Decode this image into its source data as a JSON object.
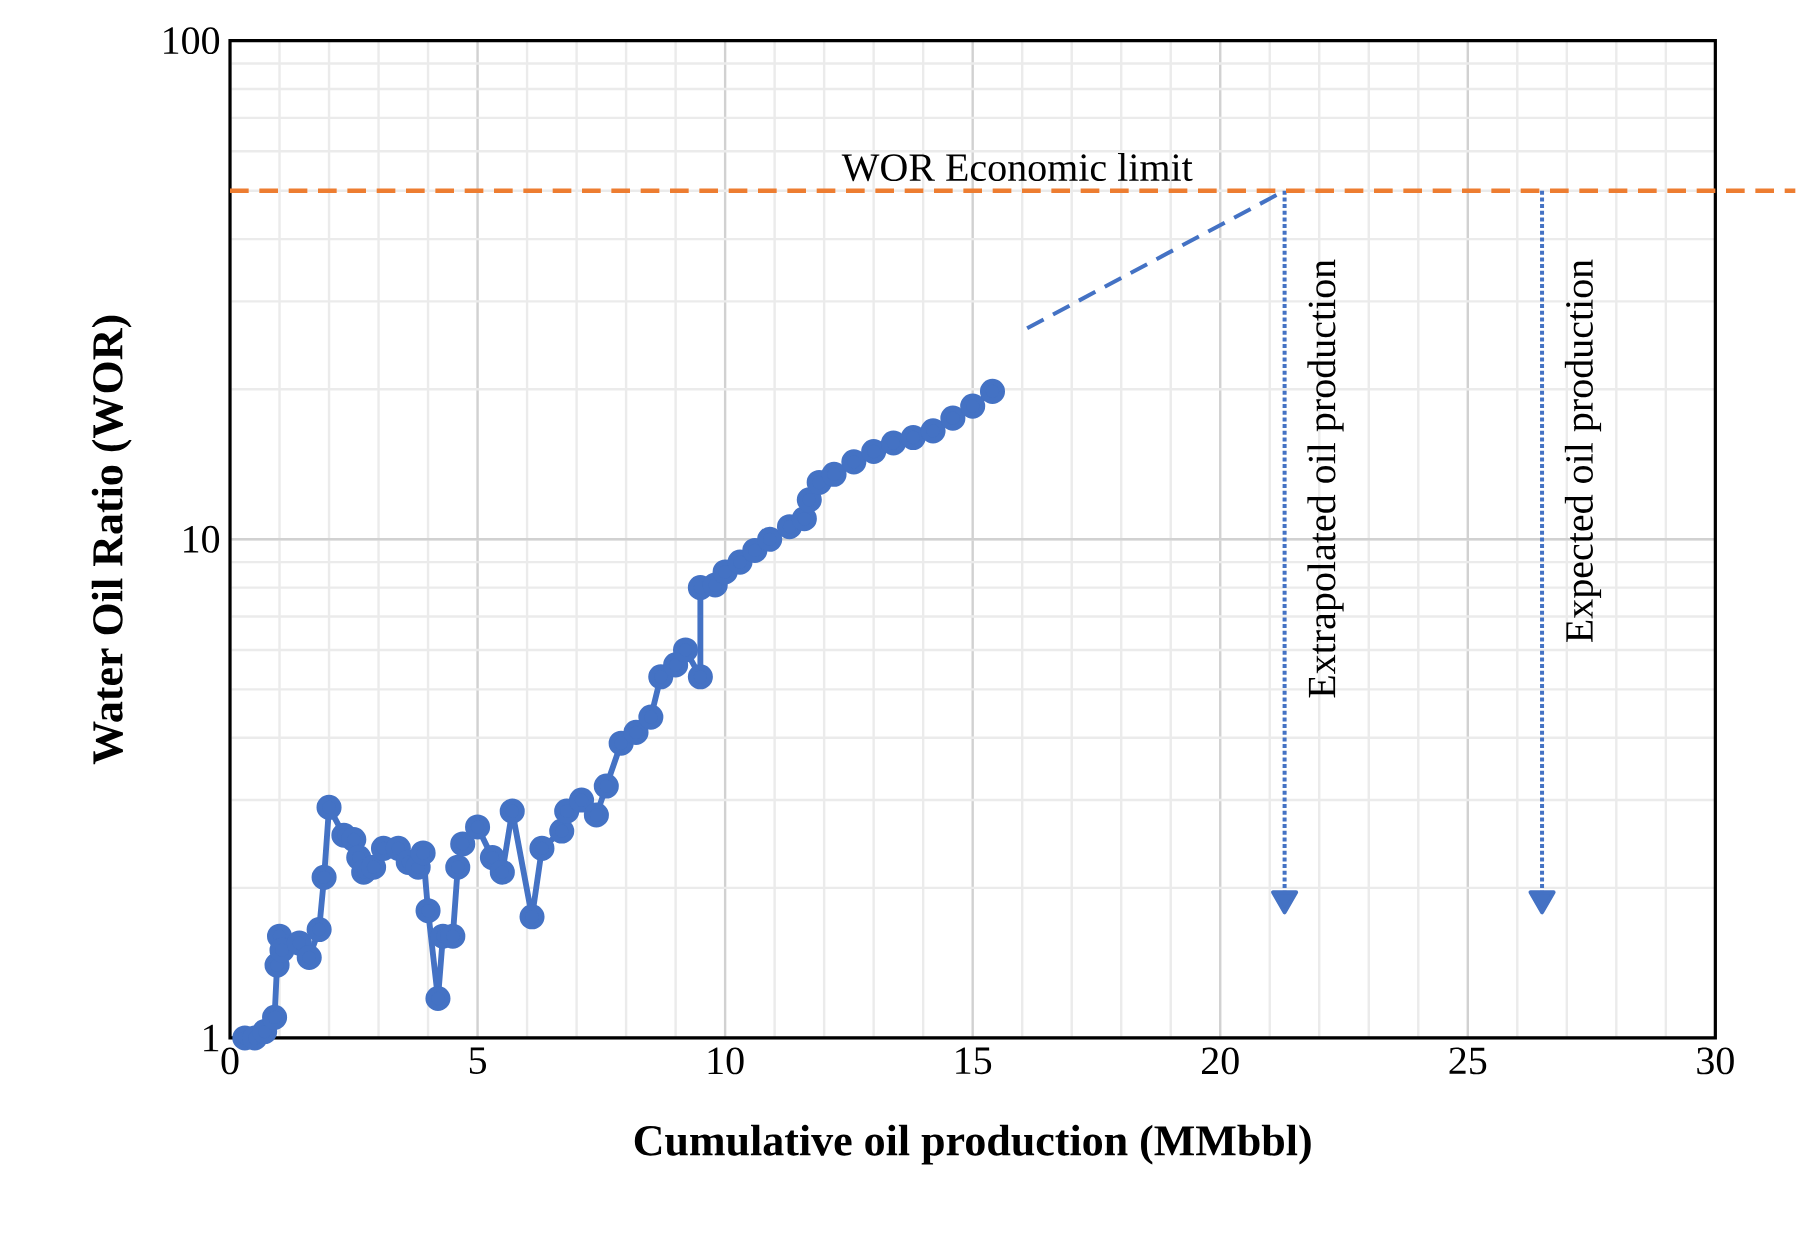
{
  "chart_data": {
    "type": "line",
    "xlabel": "Cumulative oil production (MMbbl)",
    "ylabel": "Water Oil Ratio (WOR)",
    "log": "y",
    "grid": true,
    "xlim": [
      0,
      30
    ],
    "xticks": [
      0,
      5,
      10,
      15,
      20,
      25,
      30
    ],
    "ylim": [
      1,
      100
    ],
    "yticks": [
      1,
      10,
      100
    ],
    "series": [
      {
        "color": "#4472c4",
        "marker": "circle",
        "line_style": "solid",
        "x": [
          0.3,
          0.5,
          0.7,
          0.9,
          0.95,
          1.0,
          1.05,
          1.4,
          1.6,
          1.8,
          1.9,
          2.0,
          2.3,
          2.5,
          2.6,
          2.7,
          2.9,
          3.1,
          3.4,
          3.6,
          3.8,
          3.9,
          4.0,
          4.2,
          4.3,
          4.5,
          4.6,
          4.7,
          5.0,
          5.3,
          5.5,
          5.7,
          6.1,
          6.3,
          6.7,
          6.8,
          7.1,
          7.4,
          7.6,
          7.9,
          8.2,
          8.5,
          8.7,
          9.0,
          9.2,
          9.5,
          9.5,
          9.8,
          10.0,
          10.3,
          10.6,
          10.9,
          11.3,
          11.6,
          11.7,
          11.9,
          12.2,
          12.6,
          13.0,
          13.4,
          13.8,
          14.2,
          14.6,
          15.0,
          15.4
        ],
        "values": [
          1.0,
          1.0,
          1.03,
          1.1,
          1.4,
          1.6,
          1.5,
          1.55,
          1.45,
          1.65,
          2.1,
          2.9,
          2.55,
          2.5,
          2.3,
          2.15,
          2.2,
          2.4,
          2.4,
          2.25,
          2.2,
          2.35,
          1.8,
          1.2,
          1.6,
          1.6,
          2.2,
          2.45,
          2.65,
          2.3,
          2.15,
          2.85,
          1.75,
          2.4,
          2.6,
          2.85,
          3.0,
          2.8,
          3.2,
          3.9,
          4.1,
          4.4,
          5.3,
          5.6,
          6.0,
          5.3,
          8.0,
          8.1,
          8.6,
          9.0,
          9.5,
          10.0,
          10.6,
          11.0,
          12.0,
          13.0,
          13.5,
          14.3,
          15.0,
          15.6,
          16.0,
          16.5,
          17.5,
          18.5,
          19.8
        ]
      },
      {
        "color": "#4472c4",
        "marker": "none",
        "line_style": "dashed",
        "x": [
          16.1,
          21.3
        ],
        "values": [
          26.5,
          50
        ]
      },
      {
        "color": "#4472c4",
        "marker": "triangle",
        "line_style": "dotted",
        "x": [
          21.3,
          21.3
        ],
        "values": [
          50,
          1.9
        ]
      },
      {
        "color": "#4472c4",
        "marker": "triangle",
        "line_style": "dotted",
        "x": [
          26.5,
          26.5
        ],
        "values": [
          50,
          1.9
        ]
      }
    ],
    "ref_lines": [
      {
        "axis": "y",
        "value": 50,
        "label": "WOR Economic limit",
        "color": "#ed7d31",
        "line_style": "dashed"
      }
    ],
    "annotations": [
      "Extrapolated oil production",
      "Expected oil production"
    ]
  }
}
